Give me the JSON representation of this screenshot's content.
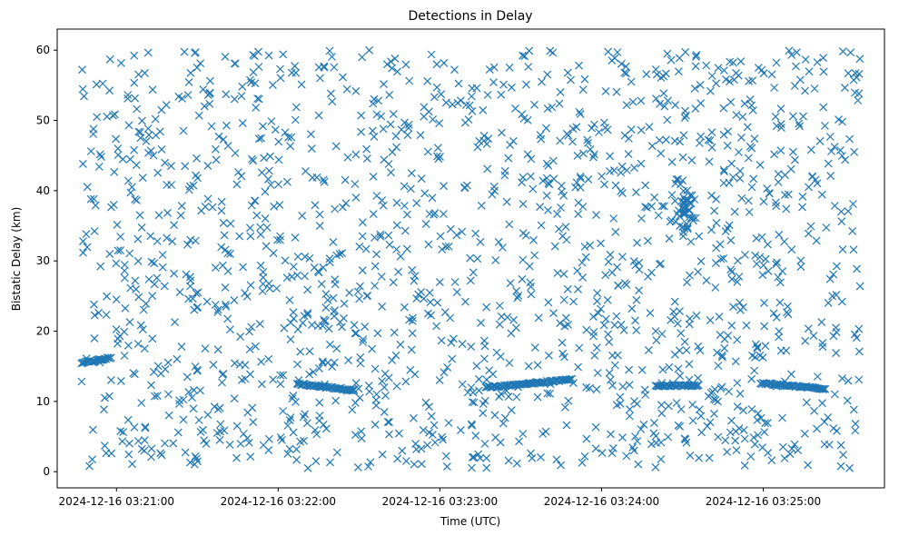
{
  "chart_data": {
    "type": "scatter",
    "title": "Detections in Delay",
    "xlabel": "Time (UTC)",
    "ylabel": "Bistatic Delay (km)",
    "marker": "x",
    "color": "#1f77b4",
    "x_time_range": [
      "2024-12-16 03:20:47",
      "2024-12-16 03:25:36"
    ],
    "xlim": [
      "2024-12-16 03:20:38",
      "2024-12-16 03:25:45"
    ],
    "ylim": [
      -2.3,
      63
    ],
    "x_ticks": [
      "2024-12-16 03:21:00",
      "2024-12-16 03:22:00",
      "2024-12-16 03:23:00",
      "2024-12-16 03:24:00",
      "2024-12-16 03:25:00"
    ],
    "y_ticks": [
      0,
      10,
      20,
      30,
      40,
      50,
      60
    ],
    "grid": false,
    "legend": "none",
    "tracks": [
      {
        "t_start": "2024-12-16 03:20:47",
        "t_end": "2024-12-16 03:20:58",
        "delay_start": 15.5,
        "delay_end": 16.2
      },
      {
        "t_start": "2024-12-16 03:22:07",
        "t_end": "2024-12-16 03:22:28",
        "delay_start": 12.5,
        "delay_end": 11.6
      },
      {
        "t_start": "2024-12-16 03:23:17",
        "t_end": "2024-12-16 03:23:49",
        "delay_start": 12.0,
        "delay_end": 13.1
      },
      {
        "t_start": "2024-12-16 03:24:20",
        "t_end": "2024-12-16 03:24:36",
        "delay_start": 12.2,
        "delay_end": 12.3
      },
      {
        "t_start": "2024-12-16 03:24:59",
        "t_end": "2024-12-16 03:25:23",
        "delay_start": 12.6,
        "delay_end": 11.8
      }
    ],
    "clusters": [
      {
        "t_center": "2024-12-16 03:24:31",
        "delay_center": 37.5,
        "spread_t_s": 3,
        "spread_delay": 2.5
      }
    ],
    "background_detections_count": 1600,
    "delay_range": [
      0.5,
      60
    ]
  }
}
